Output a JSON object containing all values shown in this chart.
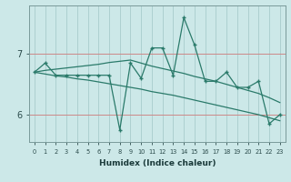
{
  "xlabel": "Humidex (Indice chaleur)",
  "bg_color": "#cce8e8",
  "grid_color_v": "#a8cccc",
  "grid_color_h": "#cc9999",
  "line_color": "#2a7a6a",
  "x_values": [
    0,
    1,
    2,
    3,
    4,
    5,
    6,
    7,
    8,
    9,
    10,
    11,
    12,
    13,
    14,
    15,
    16,
    17,
    18,
    19,
    20,
    21,
    22,
    23
  ],
  "y_main": [
    6.7,
    6.85,
    6.65,
    6.65,
    6.65,
    6.65,
    6.65,
    6.65,
    5.75,
    6.85,
    6.6,
    7.1,
    7.1,
    6.65,
    7.6,
    7.15,
    6.55,
    6.55,
    6.7,
    6.45,
    6.45,
    6.55,
    5.85,
    6.0
  ],
  "y_t1": [
    6.7,
    6.73,
    6.75,
    6.77,
    6.79,
    6.81,
    6.83,
    6.86,
    6.88,
    6.9,
    6.85,
    6.8,
    6.76,
    6.72,
    6.68,
    6.63,
    6.59,
    6.55,
    6.5,
    6.45,
    6.4,
    6.35,
    6.28,
    6.2
  ],
  "y_t2": [
    6.7,
    6.67,
    6.64,
    6.62,
    6.59,
    6.57,
    6.54,
    6.51,
    6.48,
    6.45,
    6.42,
    6.38,
    6.35,
    6.32,
    6.28,
    6.24,
    6.2,
    6.16,
    6.12,
    6.08,
    6.04,
    6.0,
    5.95,
    5.9
  ],
  "yticks": [
    6,
    7
  ],
  "ylim": [
    5.55,
    7.8
  ],
  "xlim": [
    -0.5,
    23.5
  ],
  "hlines_y": [
    6.0,
    7.0
  ],
  "hline_color": "#cc8888",
  "figsize": [
    3.2,
    2.0
  ],
  "dpi": 100
}
